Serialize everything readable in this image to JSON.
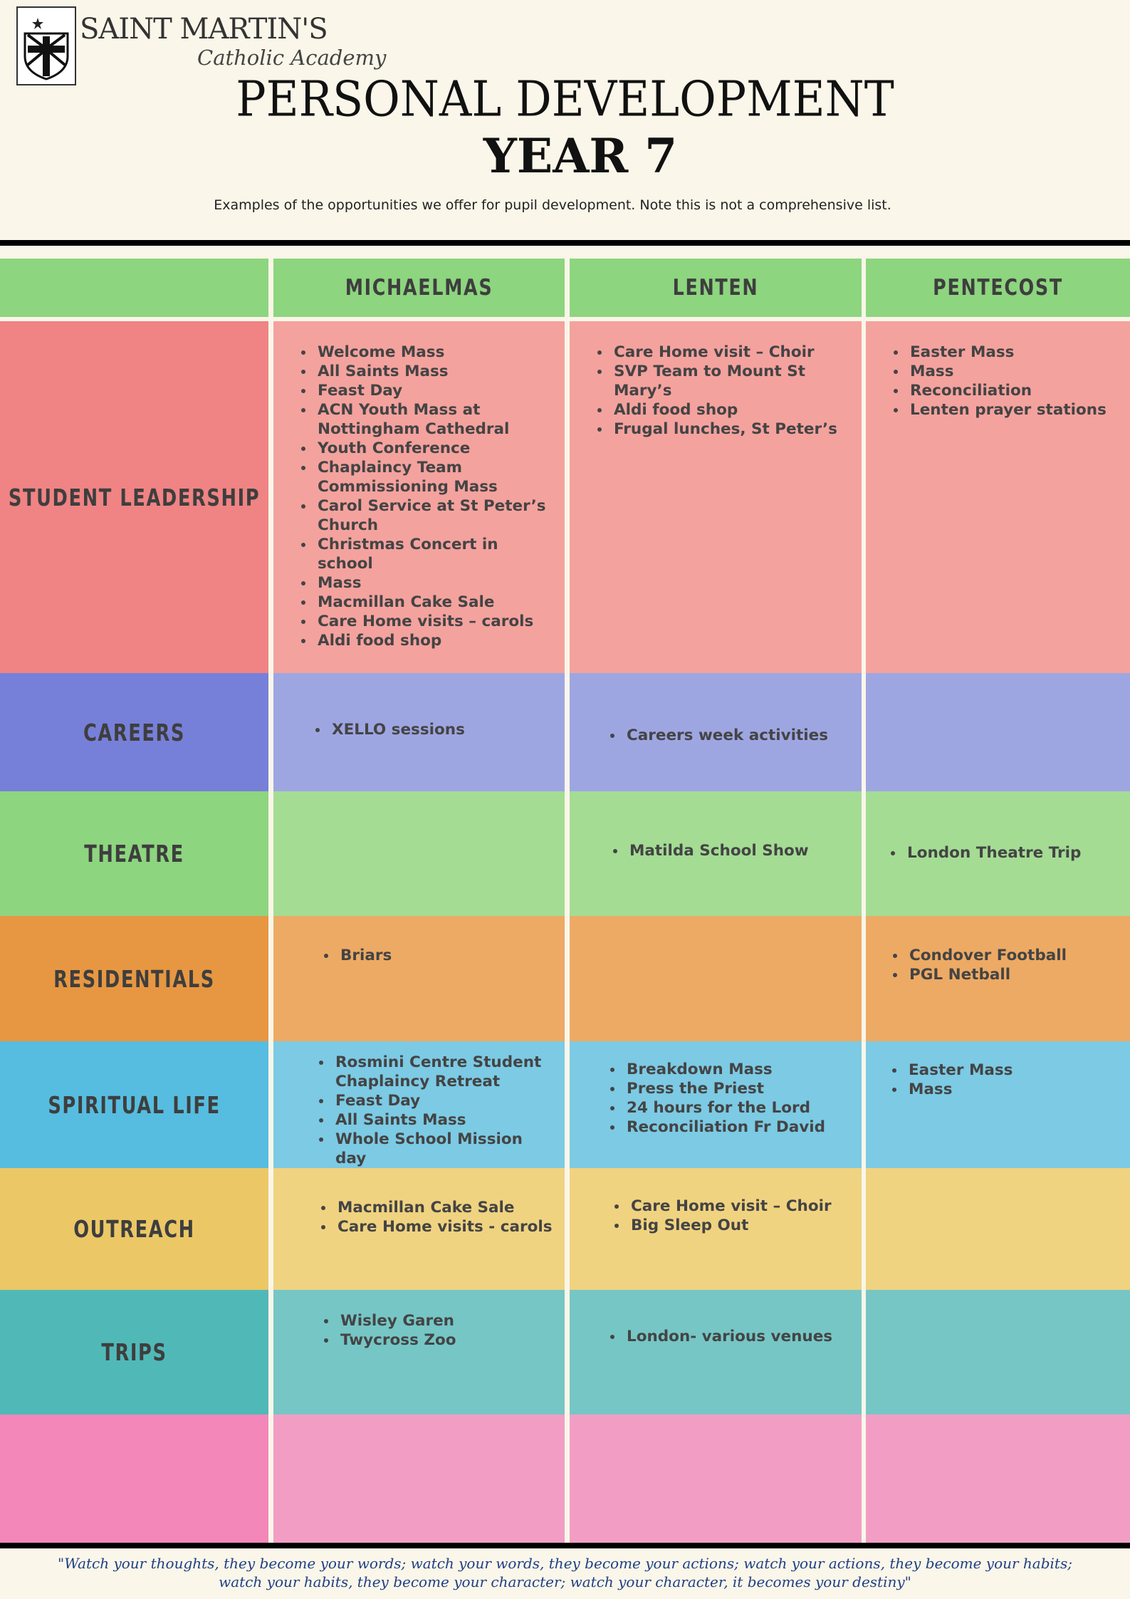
{
  "brand": {
    "name": "SAINT MARTIN'S",
    "subtitle": "Catholic Academy"
  },
  "title": "PERSONAL DEVELOPMENT",
  "year": "YEAR 7",
  "note": "Examples of the opportunities we offer for pupil development. Note this is not a comprehensive list.",
  "columns": [
    "MICHAELMAS",
    "LENTEN",
    "PENTECOST"
  ],
  "colors": {
    "header": "#8dd57f",
    "background": "#faf6e9",
    "quote": "#1f3f86"
  },
  "rows": [
    {
      "label": "STUDENT LEADERSHIP",
      "label_color": "#f08383",
      "cell_color": "#f4a29e",
      "cells": [
        [
          "Welcome Mass",
          "All Saints Mass",
          "Feast Day",
          "ACN Youth Mass at Nottingham Cathedral",
          "Youth Conference",
          "Chaplaincy Team Commissioning Mass",
          "Carol Service at St Peter’s Church",
          "Christmas Concert in school",
          "Mass",
          "Macmillan Cake Sale",
          "Care Home visits – carols",
          "Aldi food shop"
        ],
        [
          "Care Home visit – Choir",
          "SVP Team to Mount St Mary’s",
          "Aldi food shop",
          "Frugal lunches, St Peter’s"
        ],
        [
          "Easter Mass",
          "Mass",
          "Reconciliation",
          "Lenten prayer stations"
        ]
      ]
    },
    {
      "label": "CAREERS",
      "label_color": "#7780d9",
      "cell_color": "#9ea6e2",
      "cells": [
        [
          "XELLO sessions"
        ],
        [
          "Careers week activities"
        ],
        []
      ]
    },
    {
      "label": "THEATRE",
      "label_color": "#8dd57f",
      "cell_color": "#a4dc94",
      "cells": [
        [],
        [
          "Matilda School Show"
        ],
        [
          "London Theatre Trip"
        ]
      ]
    },
    {
      "label": "RESIDENTIALS",
      "label_color": "#e79741",
      "cell_color": "#edaa64",
      "cells": [
        [
          "Briars"
        ],
        [],
        [
          "Condover Football",
          "PGL Netball"
        ]
      ]
    },
    {
      "label": "SPIRITUAL LIFE",
      "label_color": "#56bde0",
      "cell_color": "#7ccae4",
      "cells": [
        [
          "Rosmini Centre Student Chaplaincy Retreat",
          "Feast Day",
          "All Saints Mass",
          "Whole School Mission day"
        ],
        [
          "Breakdown Mass",
          "Press the Priest",
          "24 hours for the Lord",
          "Reconciliation Fr David"
        ],
        [
          "Easter Mass",
          "Mass"
        ]
      ]
    },
    {
      "label": "OUTREACH",
      "label_color": "#ecc766",
      "cell_color": "#f0d380",
      "cells": [
        [
          "Macmillan Cake Sale",
          "Care Home visits - carols"
        ],
        [
          "Care Home visit – Choir",
          "Big Sleep Out"
        ],
        []
      ]
    },
    {
      "label": "TRIPS",
      "label_color": "#50b9b8",
      "cell_color": "#76c6c6",
      "cells": [
        [
          "Wisley Garen",
          "Twycross Zoo"
        ],
        [
          "London- various venues"
        ],
        []
      ]
    },
    {
      "label": "",
      "label_color": "#f387ba",
      "cell_color": "#f29ec4",
      "cells": [
        [],
        [],
        []
      ]
    }
  ],
  "quote_line1": "\"Watch your thoughts, they become your words; watch your words, they become your actions; watch your actions, they become your habits;",
  "quote_line2": "watch your habits, they become your character; watch your character, it becomes your destiny\""
}
